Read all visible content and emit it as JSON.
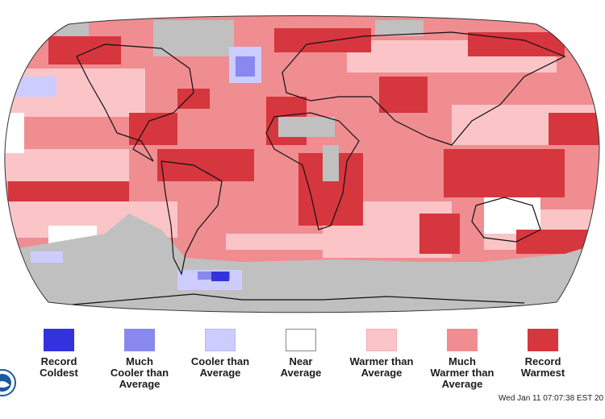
{
  "map": {
    "colors": {
      "record_coldest": "#3333dd",
      "much_cooler": "#8888ee",
      "cooler": "#ccccff",
      "near": "#ffffff",
      "warmer": "#fbc5c8",
      "much_warmer": "#ef8d91",
      "record_warmest": "#d6363d",
      "no_data": "#c0c0c0",
      "coastline": "#111111"
    }
  },
  "legend": {
    "items": [
      {
        "label": "Record\nColdest",
        "color": "#3333dd",
        "border": "#3333dd"
      },
      {
        "label": "Much\nCooler than\nAverage",
        "color": "#8888ee",
        "border": "#8888ee"
      },
      {
        "label": "Cooler than\nAverage",
        "color": "#ccccff",
        "border": "#b8b8f2"
      },
      {
        "label": "Near\nAverage",
        "color": "#ffffff",
        "border": "#888888"
      },
      {
        "label": "Warmer than\nAverage",
        "color": "#fbc5c8",
        "border": "#f2b0b4"
      },
      {
        "label": "Much\nWarmer than\nAverage",
        "color": "#ef8d91",
        "border": "#ef8d91"
      },
      {
        "label": "Record\nWarmest",
        "color": "#d6363d",
        "border": "#d6363d"
      }
    ]
  },
  "logo": {
    "icon": "noaa-logo-icon"
  },
  "footer": {
    "timestamp": "Wed Jan 11 07:07:38 EST 20"
  }
}
